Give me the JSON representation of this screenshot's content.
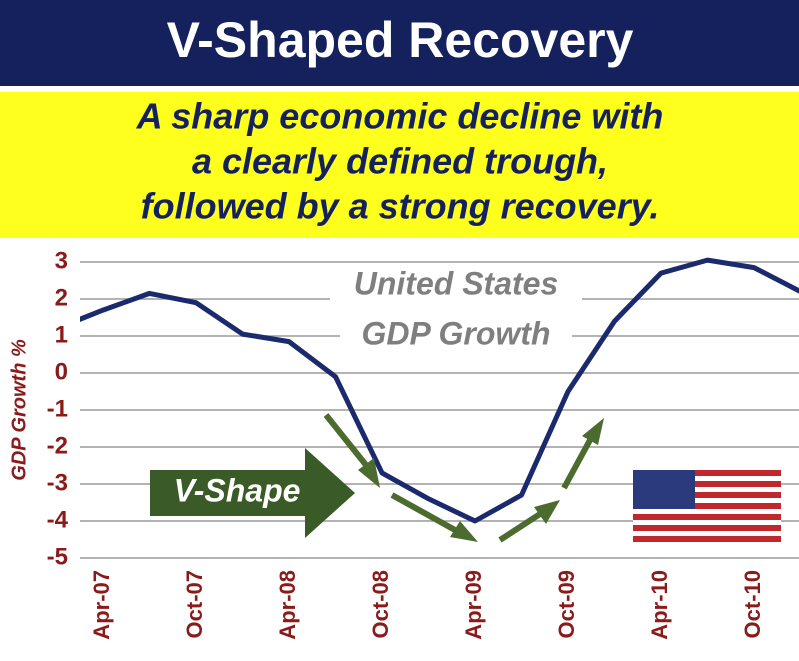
{
  "chart_data": {
    "type": "line",
    "title": "V-Shaped Recovery",
    "subtitle": [
      "A sharp economic decline with",
      "a clearly defined trough,",
      "followed by a strong recovery."
    ],
    "y_label": "GDP Growth %",
    "annotations": [
      "United States",
      "GDP Growth",
      "V-Shape"
    ],
    "categories": [
      null,
      "Apr-07",
      null,
      "Oct-07",
      null,
      "Apr-08",
      null,
      "Oct-08",
      null,
      "Apr-09",
      null,
      "Oct-09",
      null,
      "Apr-10",
      null,
      "Oct-10",
      null
    ],
    "values": [
      1.2,
      1.7,
      2.15,
      1.9,
      1.05,
      0.85,
      -0.1,
      -2.7,
      -3.4,
      -4.0,
      -3.3,
      -0.5,
      1.4,
      2.7,
      3.05,
      2.85,
      2.2
    ],
    "color": "#1a2a6c",
    "ylim": [
      -5,
      3
    ],
    "yticks": [
      3,
      2,
      1,
      0,
      -1,
      -2,
      -3,
      -4,
      -5
    ],
    "grid": true
  }
}
